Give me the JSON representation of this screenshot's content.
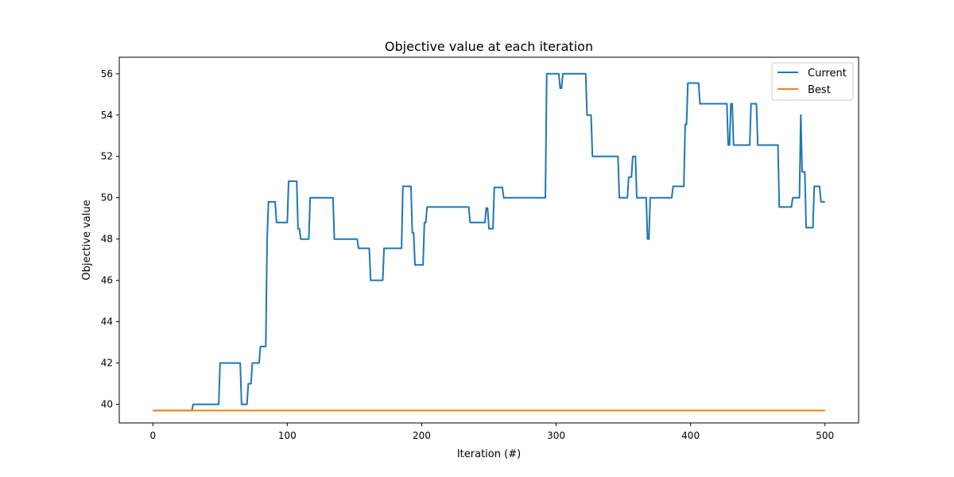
{
  "chart_data": {
    "type": "line",
    "title": "Objective value at each iteration",
    "xlabel": "Iteration (#)",
    "ylabel": "Objective value",
    "xlim": [
      -25,
      525
    ],
    "ylim": [
      39.1,
      56.8
    ],
    "xticks": [
      0,
      100,
      200,
      300,
      400,
      500
    ],
    "yticks": [
      40,
      42,
      44,
      46,
      48,
      50,
      52,
      54,
      56
    ],
    "grid": false,
    "legend_position": "top-right",
    "series": [
      {
        "name": "Current",
        "color": "#1f77b4",
        "step": true,
        "points": [
          [
            0,
            39.7
          ],
          [
            29,
            39.7
          ],
          [
            30,
            40.0
          ],
          [
            49,
            40.0
          ],
          [
            50,
            42.0
          ],
          [
            65,
            42.0
          ],
          [
            66,
            40.0
          ],
          [
            70,
            40.0
          ],
          [
            71,
            41.0
          ],
          [
            73,
            41.0
          ],
          [
            74,
            42.0
          ],
          [
            79,
            42.0
          ],
          [
            80,
            42.8
          ],
          [
            84,
            42.8
          ],
          [
            85,
            48.0
          ],
          [
            86,
            49.8
          ],
          [
            91,
            49.8
          ],
          [
            92,
            48.8
          ],
          [
            100,
            48.8
          ],
          [
            101,
            50.8
          ],
          [
            107,
            50.8
          ],
          [
            108,
            48.5
          ],
          [
            109,
            48.5
          ],
          [
            110,
            48.0
          ],
          [
            116,
            48.0
          ],
          [
            117,
            50.0
          ],
          [
            134,
            50.0
          ],
          [
            135,
            48.0
          ],
          [
            152,
            48.0
          ],
          [
            153,
            47.55
          ],
          [
            161,
            47.55
          ],
          [
            162,
            46.0
          ],
          [
            171,
            46.0
          ],
          [
            172,
            47.55
          ],
          [
            185,
            47.55
          ],
          [
            186,
            50.55
          ],
          [
            192,
            50.55
          ],
          [
            193,
            48.3
          ],
          [
            194,
            48.3
          ],
          [
            195,
            46.75
          ],
          [
            201,
            46.75
          ],
          [
            202,
            48.8
          ],
          [
            203,
            48.8
          ],
          [
            204,
            49.55
          ],
          [
            235,
            49.55
          ],
          [
            236,
            48.8
          ],
          [
            247,
            48.8
          ],
          [
            248,
            49.5
          ],
          [
            249,
            49.5
          ],
          [
            250,
            48.5
          ],
          [
            253,
            48.5
          ],
          [
            254,
            50.5
          ],
          [
            260,
            50.5
          ],
          [
            261,
            50.0
          ],
          [
            292,
            50.0
          ],
          [
            293,
            56.0
          ],
          [
            302,
            56.0
          ],
          [
            303,
            55.3
          ],
          [
            304,
            55.3
          ],
          [
            305,
            56.0
          ],
          [
            322,
            56.0
          ],
          [
            323,
            54.0
          ],
          [
            326,
            54.0
          ],
          [
            327,
            52.0
          ],
          [
            346,
            52.0
          ],
          [
            347,
            50.0
          ],
          [
            353,
            50.0
          ],
          [
            354,
            51.0
          ],
          [
            356,
            51.0
          ],
          [
            357,
            52.0
          ],
          [
            359,
            52.0
          ],
          [
            360,
            50.0
          ],
          [
            367,
            50.0
          ],
          [
            368,
            48.0
          ],
          [
            369,
            48.0
          ],
          [
            370,
            50.0
          ],
          [
            386,
            50.0
          ],
          [
            387,
            50.55
          ],
          [
            395,
            50.55
          ],
          [
            396,
            53.55
          ],
          [
            397,
            53.55
          ],
          [
            398,
            55.55
          ],
          [
            406,
            55.55
          ],
          [
            407,
            54.55
          ],
          [
            427,
            54.55
          ],
          [
            428,
            52.55
          ],
          [
            429,
            52.55
          ],
          [
            430,
            54.55
          ],
          [
            431,
            54.55
          ],
          [
            432,
            52.55
          ],
          [
            444,
            52.55
          ],
          [
            445,
            54.55
          ],
          [
            449,
            54.55
          ],
          [
            450,
            52.55
          ],
          [
            465,
            52.55
          ],
          [
            466,
            49.55
          ],
          [
            475,
            49.55
          ],
          [
            476,
            50.0
          ],
          [
            481,
            50.0
          ],
          [
            482,
            54.0
          ],
          [
            483,
            51.25
          ],
          [
            485,
            51.25
          ],
          [
            486,
            48.55
          ],
          [
            491,
            48.55
          ],
          [
            492,
            50.55
          ],
          [
            496,
            50.55
          ],
          [
            497,
            49.8
          ],
          [
            500,
            49.8
          ]
        ]
      },
      {
        "name": "Best",
        "color": "#ff7f0e",
        "step": true,
        "points": [
          [
            0,
            39.7
          ],
          [
            500,
            39.7
          ]
        ]
      }
    ]
  }
}
